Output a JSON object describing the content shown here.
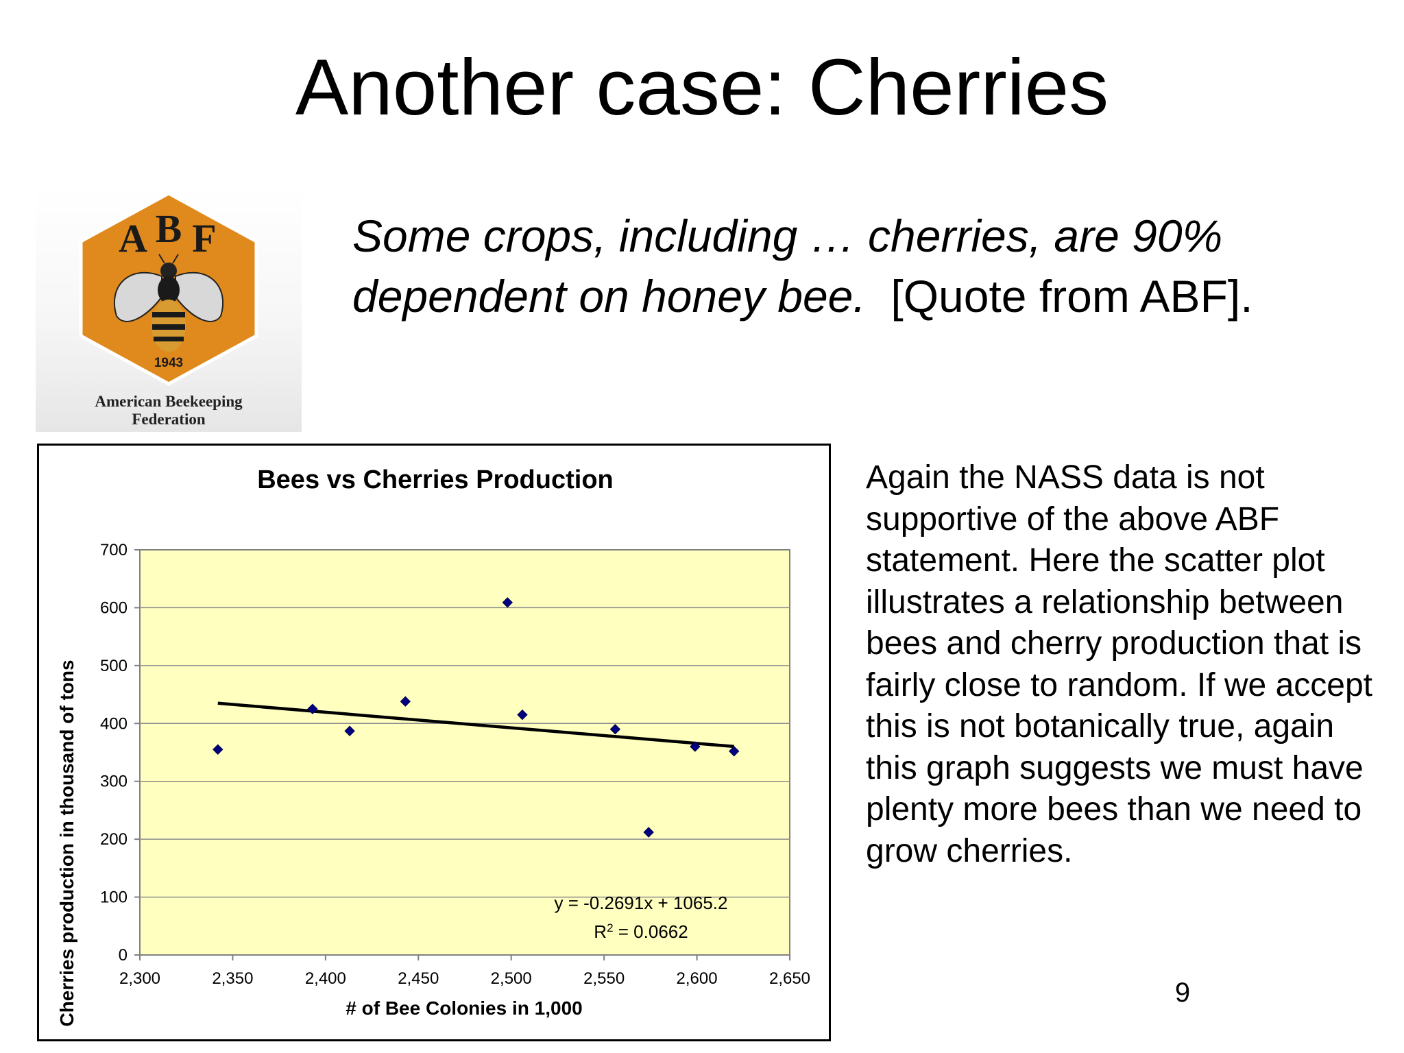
{
  "slide": {
    "title": "Another case: Cherries",
    "quote_italic": "Some crops, including … cherries, are 90% dependent on honey bee.",
    "quote_plain": "[Quote from ABF].",
    "body": "Again the NASS data is not supportive of the above ABF statement.  Here the scatter plot illustrates a relationship between bees and cherry production that is fairly close to random.  If we accept this is not botanically true, again this graph suggests we must have plenty more bees than we need to grow cherries.",
    "page_number": "9"
  },
  "logo": {
    "letter_a": "A",
    "letter_b": "B",
    "letter_f": "F",
    "year": "1943",
    "name_line1": "American Beekeeping",
    "name_line2": "Federation",
    "hex_color": "#e08a1e",
    "icon": "bee-icon"
  },
  "chart_data": {
    "type": "scatter",
    "title": "Bees vs Cherries  Production",
    "xlabel": "# of Bee Colonies in 1,000",
    "ylabel": "Cherries production in thousand of tons",
    "xlim": [
      2300,
      2650
    ],
    "ylim": [
      0,
      700
    ],
    "x_ticks": [
      "2,300",
      "2,350",
      "2,400",
      "2,450",
      "2,500",
      "2,550",
      "2,600",
      "2,650"
    ],
    "y_ticks": [
      "0",
      "100",
      "200",
      "300",
      "400",
      "500",
      "600",
      "700"
    ],
    "grid": "horizontal",
    "plot_background": "#ffffc0",
    "marker_color": "#000080",
    "series": [
      {
        "points": [
          {
            "x": 2342,
            "y": 355
          },
          {
            "x": 2393,
            "y": 425
          },
          {
            "x": 2413,
            "y": 387
          },
          {
            "x": 2443,
            "y": 438
          },
          {
            "x": 2498,
            "y": 609
          },
          {
            "x": 2506,
            "y": 415
          },
          {
            "x": 2556,
            "y": 390
          },
          {
            "x": 2574,
            "y": 212
          },
          {
            "x": 2599,
            "y": 360
          },
          {
            "x": 2620,
            "y": 352
          }
        ]
      }
    ],
    "trendline": {
      "slope": -0.2691,
      "intercept": 1065.2,
      "x_range": [
        2342,
        2620
      ],
      "equation": "y = -0.2691x + 1065.2",
      "r2_prefix": "R",
      "r2_power": "2",
      "r2_value": " = 0.0662"
    }
  }
}
